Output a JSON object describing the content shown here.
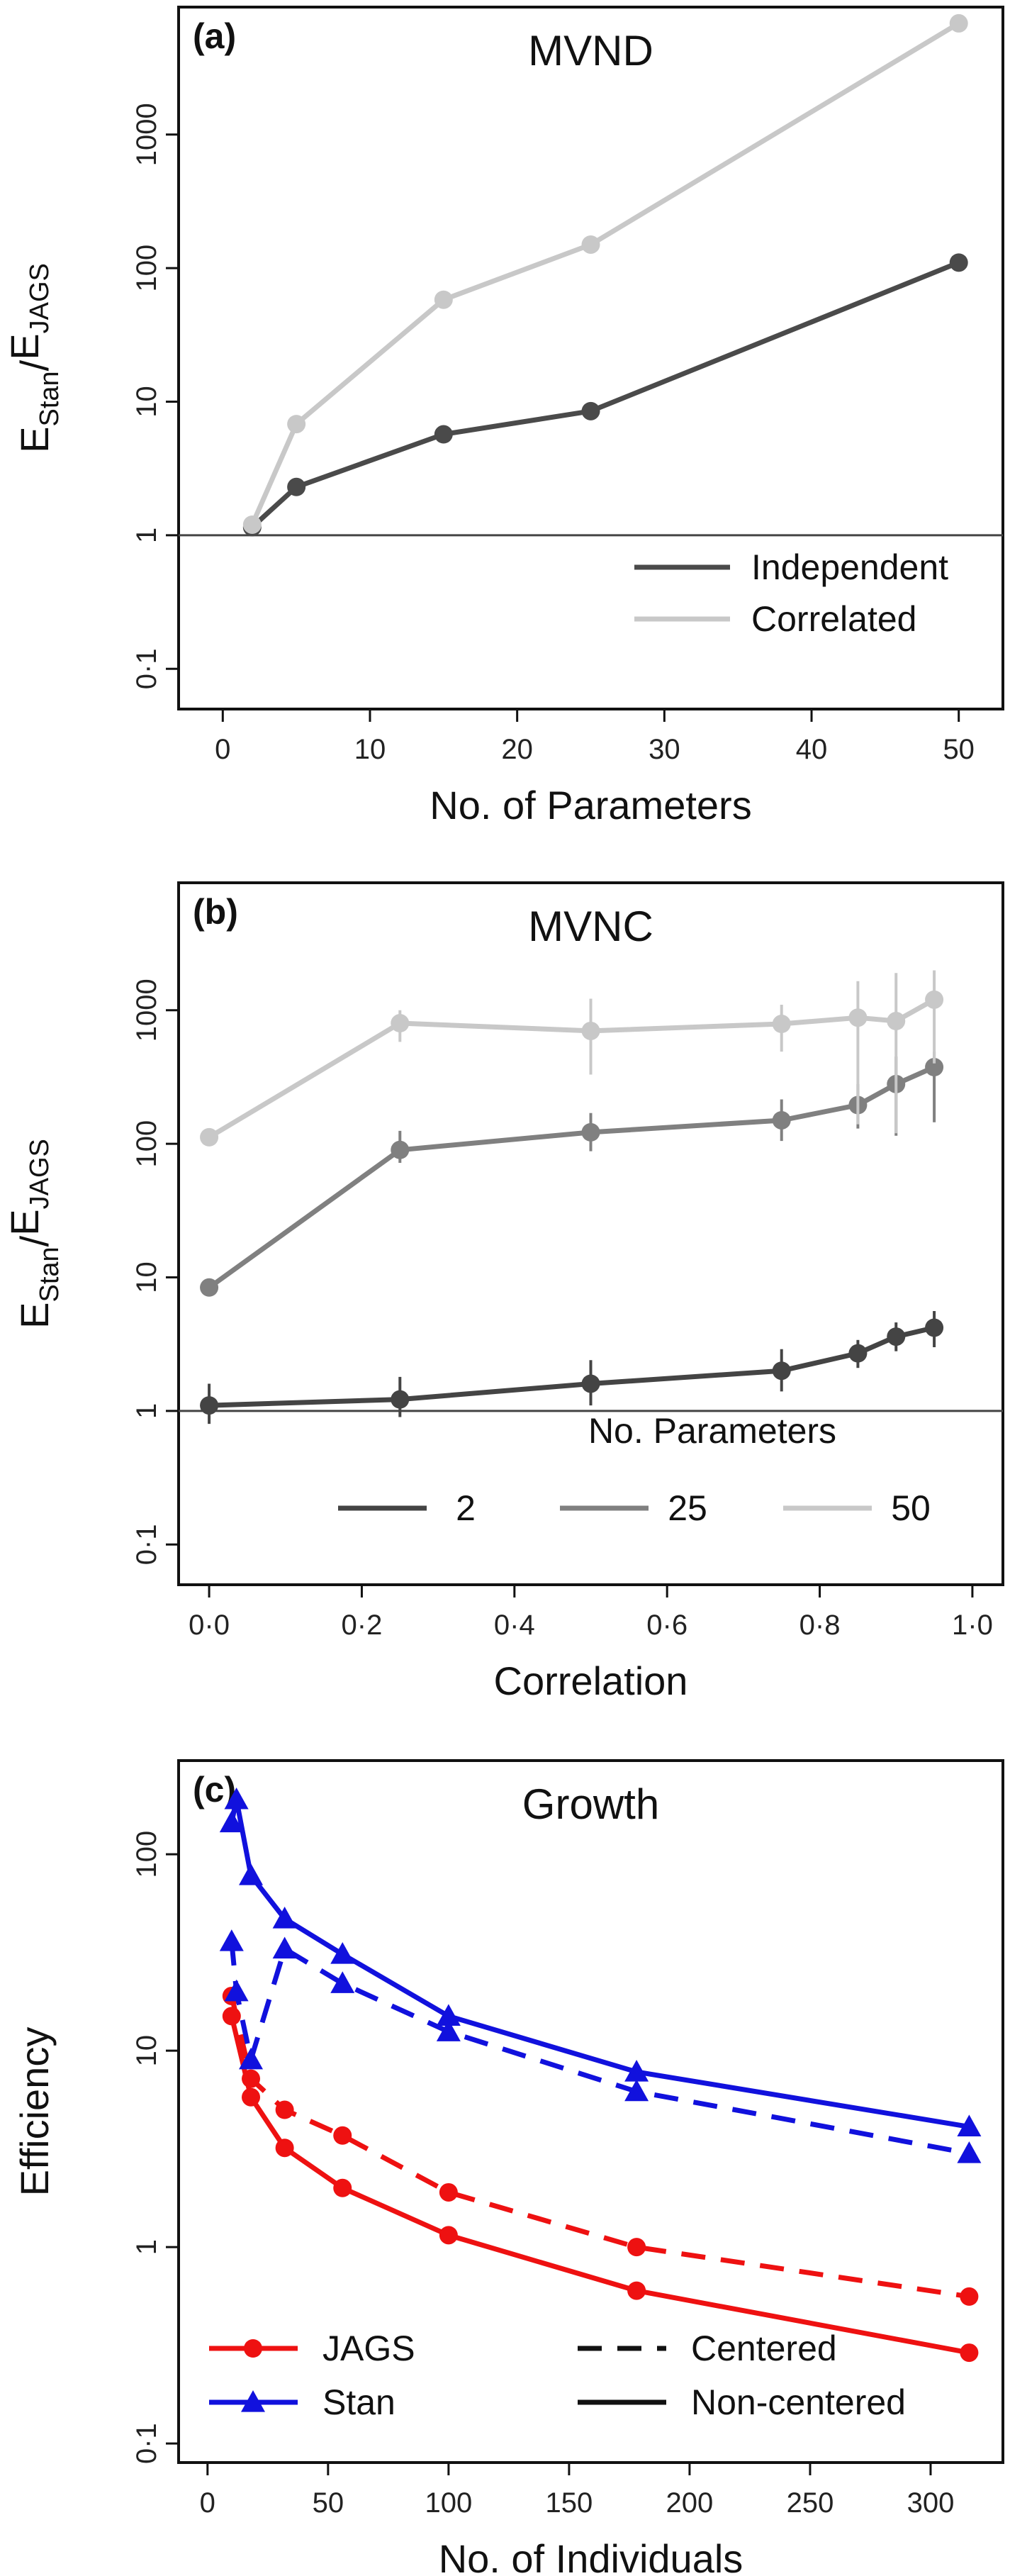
{
  "chart_data": [
    {
      "type": "line",
      "panel_label": "(a)",
      "title": "MVND",
      "xlabel": "No. of Parameters",
      "ylabel": {
        "main": "E",
        "sub1": "Stan",
        "sep": "/",
        "main2": "E",
        "sub2": "JAGS"
      },
      "y_scale": "log",
      "xlim": [
        -3,
        53
      ],
      "ylim": [
        0.05,
        9000
      ],
      "x_ticks": [
        0,
        10,
        20,
        30,
        40,
        50
      ],
      "x_tick_labels": [
        "0",
        "10",
        "20",
        "30",
        "40",
        "50"
      ],
      "y_ticks": [
        0.1,
        1,
        10,
        100,
        1000
      ],
      "y_tick_labels": [
        "0·1",
        "1",
        "10",
        "100",
        "1000"
      ],
      "reference_line": 1,
      "legend_position": "bottom-right",
      "series": [
        {
          "name": "Independent",
          "color": "#4a4a4a",
          "x": [
            2,
            5,
            15,
            25,
            50
          ],
          "y": [
            1.15,
            2.3,
            5.7,
            8.5,
            110
          ]
        },
        {
          "name": "Correlated",
          "color": "#c8c8c8",
          "x": [
            2,
            5,
            15,
            25,
            50
          ],
          "y": [
            1.2,
            6.8,
            58,
            150,
            6800
          ]
        }
      ]
    },
    {
      "type": "line",
      "panel_label": "(b)",
      "title": "MVNC",
      "xlabel": "Correlation",
      "ylabel": {
        "main": "E",
        "sub1": "Stan",
        "sep": "/",
        "main2": "E",
        "sub2": "JAGS"
      },
      "y_scale": "log",
      "xlim": [
        -0.04,
        1.04
      ],
      "ylim": [
        0.05,
        9000
      ],
      "x_ticks": [
        0,
        0.2,
        0.4,
        0.6,
        0.8,
        1.0
      ],
      "x_tick_labels": [
        "0·0",
        "0·2",
        "0·4",
        "0·6",
        "0·8",
        "1·0"
      ],
      "y_ticks": [
        0.1,
        1,
        10,
        100,
        1000
      ],
      "y_tick_labels": [
        "0·1",
        "1",
        "10",
        "100",
        "1000"
      ],
      "reference_line": 1,
      "legend_title": "No. Parameters",
      "legend_position": "bottom-right",
      "series": [
        {
          "name": "2",
          "color": "#444444",
          "x": [
            0,
            0.25,
            0.5,
            0.75,
            0.85,
            0.9,
            0.95
          ],
          "y": [
            1.1,
            1.22,
            1.6,
            2.0,
            2.7,
            3.6,
            4.2
          ],
          "err_lo": [
            0.8,
            0.9,
            1.1,
            1.4,
            2.1,
            2.8,
            3.0
          ],
          "err_hi": [
            1.6,
            1.8,
            2.4,
            2.9,
            3.4,
            4.6,
            5.6
          ]
        },
        {
          "name": "25",
          "color": "#808080",
          "x": [
            0,
            0.25,
            0.5,
            0.75,
            0.85,
            0.9,
            0.95
          ],
          "y": [
            8.4,
            90,
            122,
            150,
            195,
            280,
            375
          ],
          "err_lo": [
            7.6,
            72,
            88,
            105,
            130,
            115,
            145
          ],
          "err_hi": [
            9.3,
            125,
            170,
            215,
            280,
            450,
            490
          ]
        },
        {
          "name": "50",
          "color": "#c8c8c8",
          "x": [
            0,
            0.25,
            0.5,
            0.75,
            0.85,
            0.9,
            0.95
          ],
          "y": [
            112,
            800,
            700,
            790,
            880,
            830,
            1200
          ],
          "err_lo": [
            100,
            580,
            330,
            490,
            140,
            120,
            400
          ],
          "err_hi": [
            125,
            1000,
            1220,
            1100,
            1650,
            1900,
            1990
          ]
        }
      ]
    },
    {
      "type": "line",
      "panel_label": "(c)",
      "title": "Growth",
      "xlabel": "No. of Individuals",
      "ylabel": "Efficiency",
      "y_scale": "log",
      "xlim": [
        -12,
        330
      ],
      "ylim": [
        0.08,
        300
      ],
      "x_ticks": [
        0,
        50,
        100,
        150,
        200,
        250,
        300
      ],
      "x_tick_labels": [
        "0",
        "50",
        "100",
        "150",
        "200",
        "250",
        "300"
      ],
      "y_ticks": [
        0.1,
        1,
        10,
        100
      ],
      "y_tick_labels": [
        "0·1",
        "1",
        "10",
        "100"
      ],
      "legend_position": "bottom",
      "legend_left": [
        {
          "label": "JAGS",
          "color": "#ee1111",
          "marker": "circle"
        },
        {
          "label": "Stan",
          "color": "#1111dd",
          "marker": "triangle"
        }
      ],
      "legend_right": [
        {
          "label": "Centered",
          "dash": "dashed"
        },
        {
          "label": "Non-centered",
          "dash": "solid"
        }
      ],
      "series": [
        {
          "name": "JAGS Centered",
          "color": "#ee1111",
          "marker": "circle",
          "dash": "dashed",
          "x": [
            10,
            18,
            32,
            56,
            100,
            178,
            316
          ],
          "y": [
            19,
            7.2,
            5.0,
            3.7,
            1.9,
            1.0,
            0.56
          ]
        },
        {
          "name": "JAGS Non-centered",
          "color": "#ee1111",
          "marker": "circle",
          "dash": "solid",
          "x": [
            10,
            18,
            32,
            56,
            100,
            178,
            316
          ],
          "y": [
            15,
            5.8,
            3.2,
            2.0,
            1.15,
            0.6,
            0.29
          ]
        },
        {
          "name": "Stan Centered",
          "color": "#1111dd",
          "marker": "triangle",
          "dash": "dashed",
          "x": [
            10,
            12,
            18,
            32,
            56,
            100,
            178,
            316
          ],
          "y": [
            36,
            20,
            9,
            33,
            22,
            12.5,
            6.2,
            3.0
          ]
        },
        {
          "name": "Stan Non-centered",
          "color": "#1111dd",
          "marker": "triangle",
          "dash": "solid",
          "x": [
            10,
            12,
            18,
            32,
            56,
            100,
            178,
            316
          ],
          "y": [
            145,
            190,
            78,
            47,
            31,
            15,
            7.8,
            4.1
          ]
        }
      ]
    }
  ]
}
